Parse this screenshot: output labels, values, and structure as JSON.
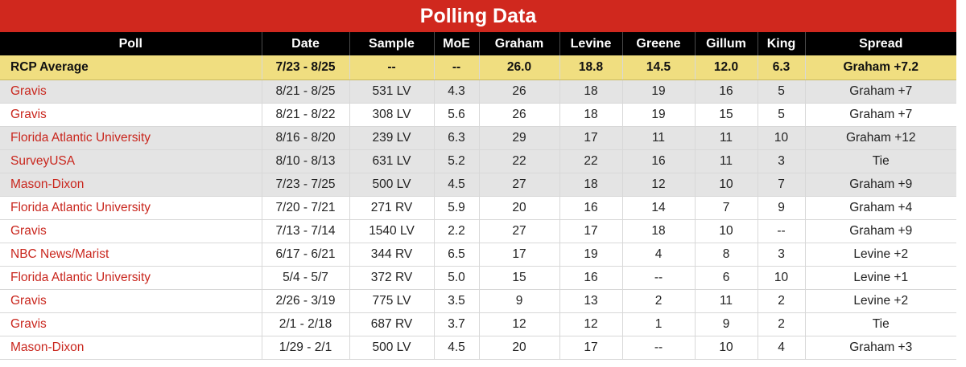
{
  "title": "Polling Data",
  "headers": [
    "Poll",
    "Date",
    "Sample",
    "MoE",
    "Graham",
    "Levine",
    "Greene",
    "Gillum",
    "King",
    "Spread"
  ],
  "average": [
    "RCP Average",
    "7/23 - 8/25",
    "--",
    "--",
    "26.0",
    "18.8",
    "14.5",
    "12.0",
    "6.3",
    "Graham +7.2"
  ],
  "rows": [
    {
      "shaded": true,
      "cells": [
        "Gravis",
        "8/21 - 8/25",
        "531 LV",
        "4.3",
        "26",
        "18",
        "19",
        "16",
        "5",
        "Graham +7"
      ]
    },
    {
      "shaded": false,
      "cells": [
        "Gravis",
        "8/21 - 8/22",
        "308 LV",
        "5.6",
        "26",
        "18",
        "19",
        "15",
        "5",
        "Graham +7"
      ]
    },
    {
      "shaded": true,
      "cells": [
        "Florida Atlantic University",
        "8/16 - 8/20",
        "239 LV",
        "6.3",
        "29",
        "17",
        "11",
        "11",
        "10",
        "Graham +12"
      ]
    },
    {
      "shaded": true,
      "cells": [
        "SurveyUSA",
        "8/10 - 8/13",
        "631 LV",
        "5.2",
        "22",
        "22",
        "16",
        "11",
        "3",
        "Tie"
      ]
    },
    {
      "shaded": true,
      "cells": [
        "Mason-Dixon",
        "7/23 - 7/25",
        "500 LV",
        "4.5",
        "27",
        "18",
        "12",
        "10",
        "7",
        "Graham +9"
      ]
    },
    {
      "shaded": false,
      "cells": [
        "Florida Atlantic University",
        "7/20 - 7/21",
        "271 RV",
        "5.9",
        "20",
        "16",
        "14",
        "7",
        "9",
        "Graham +4"
      ]
    },
    {
      "shaded": false,
      "cells": [
        "Gravis",
        "7/13 - 7/14",
        "1540 LV",
        "2.2",
        "27",
        "17",
        "18",
        "10",
        "--",
        "Graham +9"
      ]
    },
    {
      "shaded": false,
      "cells": [
        "NBC News/Marist",
        "6/17 - 6/21",
        "344 RV",
        "6.5",
        "17",
        "19",
        "4",
        "8",
        "3",
        "Levine +2"
      ]
    },
    {
      "shaded": false,
      "cells": [
        "Florida Atlantic University",
        "5/4 - 5/7",
        "372 RV",
        "5.0",
        "15",
        "16",
        "--",
        "6",
        "10",
        "Levine +1"
      ]
    },
    {
      "shaded": false,
      "cells": [
        "Gravis",
        "2/26 - 3/19",
        "775 LV",
        "3.5",
        "9",
        "13",
        "2",
        "11",
        "2",
        "Levine +2"
      ]
    },
    {
      "shaded": false,
      "cells": [
        "Gravis",
        "2/1 - 2/18",
        "687 RV",
        "3.7",
        "12",
        "12",
        "1",
        "9",
        "2",
        "Tie"
      ]
    },
    {
      "shaded": false,
      "cells": [
        "Mason-Dixon",
        "1/29 - 2/1",
        "500 LV",
        "4.5",
        "20",
        "17",
        "--",
        "10",
        "4",
        "Graham +3"
      ]
    }
  ]
}
